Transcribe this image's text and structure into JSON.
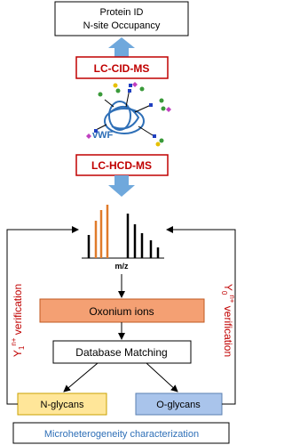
{
  "top_box": {
    "line1": "Protein ID",
    "line2": "N-site Occupancy"
  },
  "cid_box": "LC-CID-MS",
  "protein_label": "vWF",
  "hcd_box": "LC-HCD-MS",
  "spectrum_axis": "m/z",
  "oxonium_box": "Oxonium ions",
  "database_box": "Database Matching",
  "n_glycans_box": "N-glycans",
  "o_glycans_box": "O-glycans",
  "bottom_box": "Microheterogeneity characterization",
  "left_label": {
    "base": "Y",
    "sub": "1",
    "sup": "n+",
    "rest": " verification"
  },
  "right_label": {
    "base": "Y",
    "sub": "0",
    "sup": "n+",
    "rest": " verification"
  }
}
